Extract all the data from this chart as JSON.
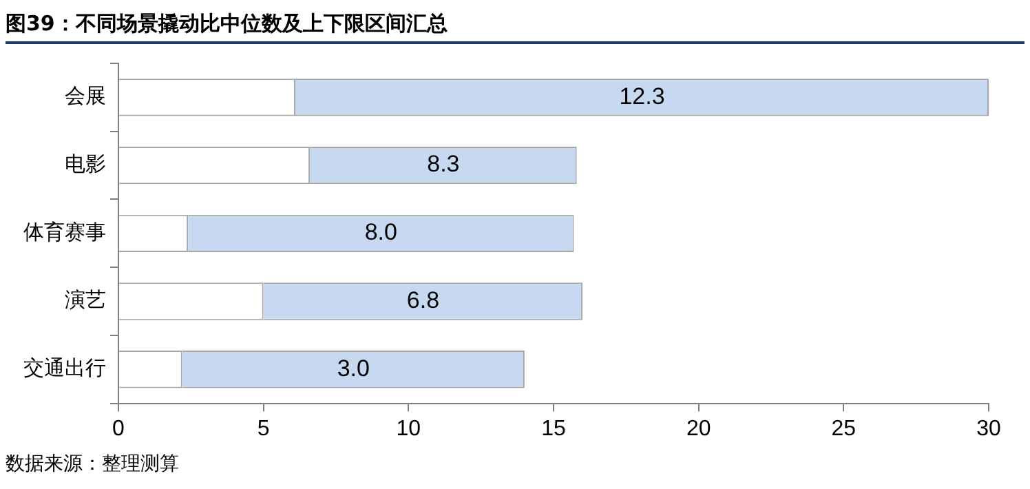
{
  "chart_data": {
    "type": "bar",
    "title": "图39：不同场景撬动比中位数及上下限区间汇总",
    "orientation": "horizontal",
    "stacked": true,
    "categories": [
      "会展",
      "电影",
      "体育赛事",
      "演艺",
      "交通出行"
    ],
    "series": [
      {
        "color": "#ffffff",
        "values": [
          6.1,
          6.6,
          2.4,
          5.0,
          2.2
        ]
      },
      {
        "color": "#c6d9f0",
        "values": [
          23.9,
          9.2,
          13.3,
          11.0,
          11.8
        ]
      }
    ],
    "xlim": [
      0,
      30
    ],
    "xticks": [
      0,
      5,
      10,
      15,
      20,
      25,
      30
    ],
    "grid": false,
    "legend": false,
    "annotations": [
      "12.3",
      "8.3",
      "8.0",
      "6.8",
      "3.0",
      "数据来源：整理测算"
    ]
  }
}
